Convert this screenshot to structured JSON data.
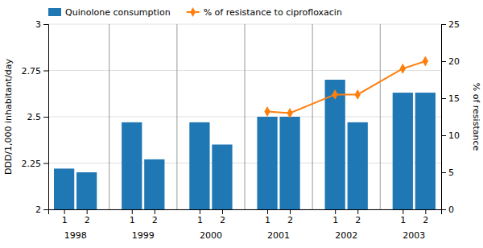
{
  "chart_data": {
    "type": "bar",
    "categories": [
      "1",
      "2",
      "1",
      "2",
      "1",
      "2",
      "1",
      "2",
      "1",
      "2",
      "1",
      "2"
    ],
    "category_groups": [
      "1998",
      "1999",
      "2000",
      "2001",
      "2002",
      "2003"
    ],
    "series": [
      {
        "name": "Quinolone consumption",
        "type": "bar",
        "values": [
          2.22,
          2.2,
          2.47,
          2.27,
          2.47,
          2.35,
          2.5,
          2.5,
          2.7,
          2.47,
          2.63,
          2.63
        ]
      },
      {
        "name": "% of resistance to ciprofloxacin",
        "type": "line",
        "axis": "y2",
        "marker": "diamond",
        "values": [
          null,
          null,
          null,
          null,
          null,
          null,
          13.2,
          13.0,
          15.5,
          15.5,
          19.0,
          20.0
        ]
      }
    ],
    "ylabel": "DDD/1,000 inhabitant/day",
    "y2label": "% of resistance",
    "ylim": [
      2.0,
      3.0
    ],
    "yticks": [
      2,
      2.25,
      2.5,
      2.75,
      3
    ],
    "y2lim": [
      0,
      25
    ],
    "y2ticks": [
      0,
      5,
      10,
      15,
      20,
      25
    ],
    "grid": true,
    "legend": "upper left"
  }
}
